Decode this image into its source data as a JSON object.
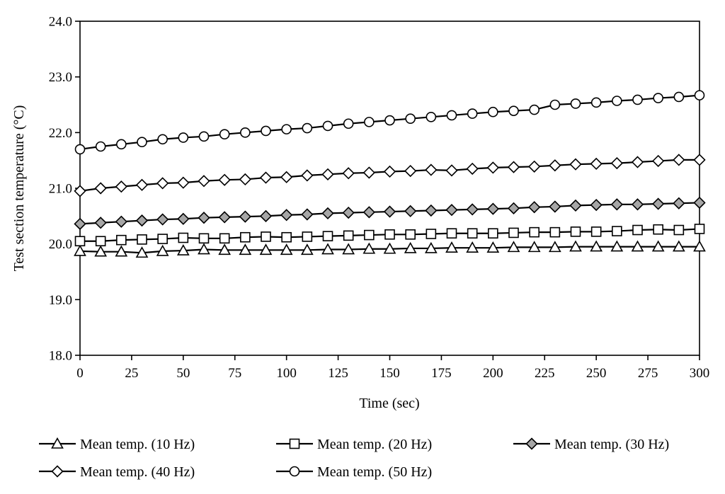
{
  "chart_data": {
    "type": "line",
    "title": "",
    "xlabel": "Time (sec)",
    "ylabel": "Test section temperature (°C)",
    "xlim": [
      0,
      300
    ],
    "ylim": [
      18.0,
      24.0
    ],
    "x_ticks": [
      "0",
      "25",
      "50",
      "75",
      "100",
      "125",
      "150",
      "175",
      "200",
      "225",
      "250",
      "275",
      "300"
    ],
    "y_ticks": [
      "18.0",
      "19.0",
      "20.0",
      "21.0",
      "22.0",
      "23.0",
      "24.0"
    ],
    "grid": false,
    "legend_position": "bottom",
    "x": [
      0,
      10,
      20,
      30,
      40,
      50,
      60,
      70,
      80,
      90,
      100,
      110,
      120,
      130,
      140,
      150,
      160,
      170,
      180,
      190,
      200,
      210,
      220,
      230,
      240,
      250,
      260,
      270,
      280,
      290,
      300
    ],
    "series": [
      {
        "name": "Mean temp. (10 Hz)",
        "marker": "triangle",
        "fill": "#ffffff",
        "values": [
          19.87,
          19.86,
          19.86,
          19.84,
          19.87,
          19.88,
          19.9,
          19.89,
          19.89,
          19.89,
          19.89,
          19.89,
          19.9,
          19.9,
          19.91,
          19.91,
          19.92,
          19.92,
          19.93,
          19.93,
          19.93,
          19.94,
          19.94,
          19.94,
          19.95,
          19.95,
          19.95,
          19.95,
          19.95,
          19.95,
          19.95
        ]
      },
      {
        "name": "Mean temp. (20 Hz)",
        "marker": "square",
        "fill": "#ffffff",
        "values": [
          20.05,
          20.05,
          20.07,
          20.08,
          20.09,
          20.11,
          20.1,
          20.1,
          20.12,
          20.13,
          20.12,
          20.13,
          20.14,
          20.15,
          20.16,
          20.17,
          20.17,
          20.18,
          20.19,
          20.19,
          20.19,
          20.2,
          20.21,
          20.21,
          20.22,
          20.22,
          20.23,
          20.25,
          20.26,
          20.25,
          20.27
        ]
      },
      {
        "name": "Mean temp. (30 Hz)",
        "marker": "diamond",
        "fill": "#a6a6a6",
        "values": [
          20.36,
          20.38,
          20.4,
          20.42,
          20.44,
          20.45,
          20.47,
          20.48,
          20.49,
          20.5,
          20.52,
          20.53,
          20.55,
          20.56,
          20.57,
          20.58,
          20.59,
          20.6,
          20.61,
          20.62,
          20.63,
          20.64,
          20.66,
          20.67,
          20.69,
          20.7,
          20.71,
          20.71,
          20.72,
          20.73,
          20.74
        ]
      },
      {
        "name": "Mean temp. (40 Hz)",
        "marker": "diamond",
        "fill": "#ffffff",
        "values": [
          20.95,
          21.0,
          21.03,
          21.06,
          21.09,
          21.1,
          21.13,
          21.15,
          21.16,
          21.19,
          21.2,
          21.23,
          21.25,
          21.27,
          21.28,
          21.3,
          21.31,
          21.33,
          21.32,
          21.35,
          21.37,
          21.38,
          21.39,
          21.41,
          21.43,
          21.44,
          21.45,
          21.47,
          21.49,
          21.51,
          21.51
        ]
      },
      {
        "name": "Mean temp. (50 Hz)",
        "marker": "circle",
        "fill": "#ffffff",
        "values": [
          21.7,
          21.75,
          21.79,
          21.83,
          21.88,
          21.91,
          21.93,
          21.97,
          22.0,
          22.03,
          22.06,
          22.08,
          22.12,
          22.16,
          22.19,
          22.22,
          22.25,
          22.28,
          22.31,
          22.34,
          22.37,
          22.39,
          22.41,
          22.5,
          22.52,
          22.54,
          22.57,
          22.59,
          22.62,
          22.64,
          22.67
        ]
      }
    ]
  }
}
